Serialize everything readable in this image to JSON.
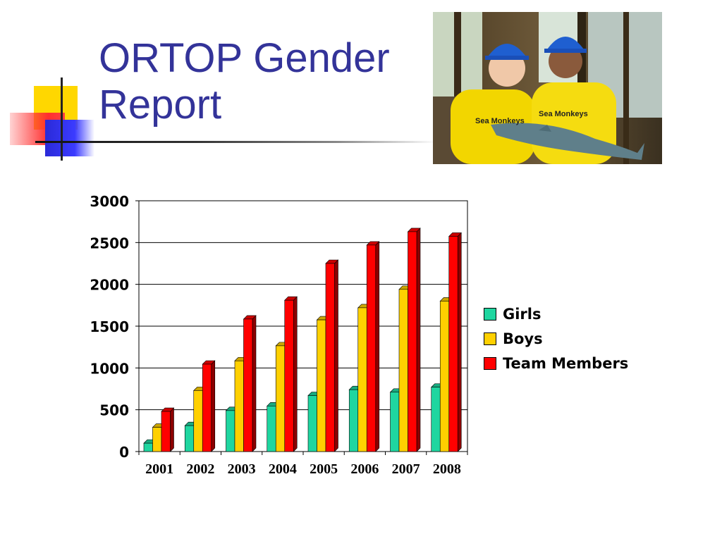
{
  "slide": {
    "title_line1": "ORTOP Gender",
    "title_line2": "Report"
  },
  "photo": {
    "icon": "photo-girls-holding-dolphin",
    "shirt_text": "Sea Monkeys"
  },
  "chart_data": {
    "type": "bar",
    "style": "3d-clustered-column",
    "categories": [
      "2001",
      "2002",
      "2003",
      "2004",
      "2005",
      "2006",
      "2007",
      "2008"
    ],
    "series": [
      {
        "name": "Girls",
        "color": "#1fd6a0",
        "values": [
          100,
          310,
          490,
          545,
          670,
          740,
          710,
          770
        ]
      },
      {
        "name": "Boys",
        "color": "#ffd000",
        "values": [
          290,
          730,
          1085,
          1265,
          1575,
          1720,
          1940,
          1800
        ]
      },
      {
        "name": "Team Members",
        "color": "#ff0000",
        "values": [
          480,
          1045,
          1585,
          1810,
          2250,
          2470,
          2630,
          2575
        ]
      }
    ],
    "yticks": [
      "0",
      "500",
      "1000",
      "1500",
      "2000",
      "2500",
      "3000"
    ],
    "ylim": [
      0,
      3000
    ],
    "grid": true,
    "legend": "right"
  }
}
